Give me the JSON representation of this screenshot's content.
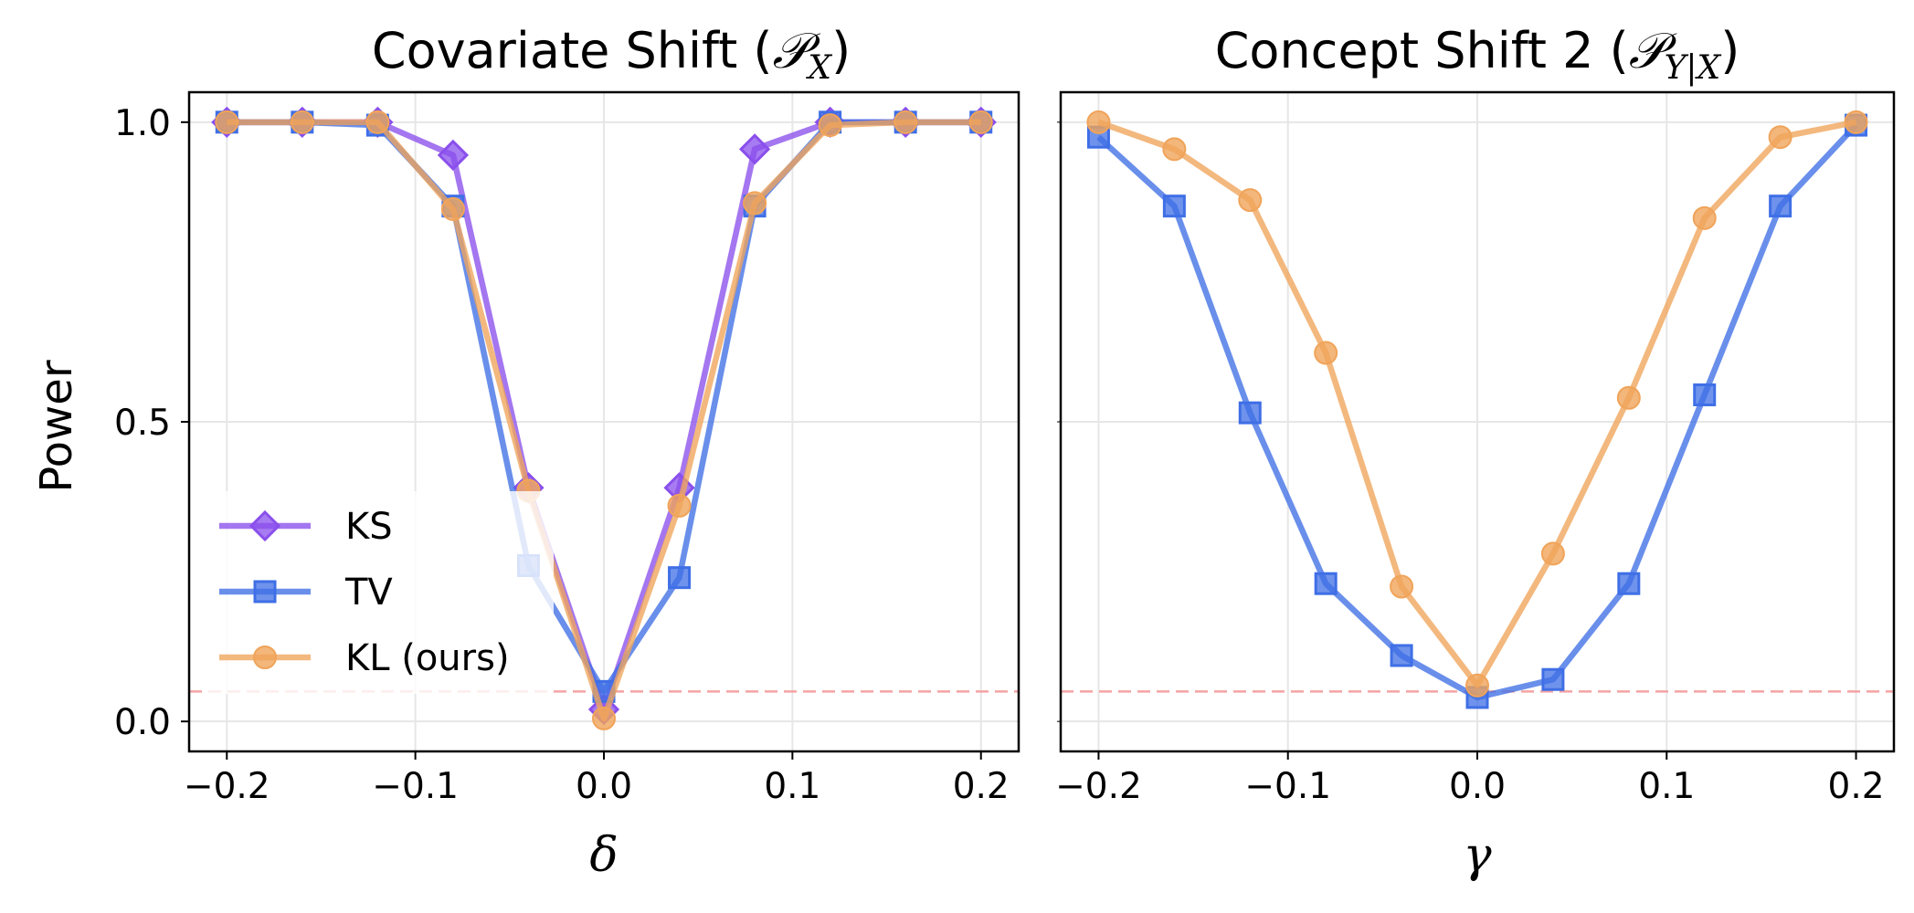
{
  "figure": {
    "y_tick_labels": [
      "0.0",
      "0.5",
      "1.0"
    ],
    "x_tick_labels": [
      "−0.2",
      "−0.1",
      "0.0",
      "0.1",
      "0.2"
    ],
    "ylabel": "Power"
  },
  "colors": {
    "KS": "#8a4fec",
    "TV": "#3f6fe6",
    "KL (ours)": "#f0a45a",
    "reference_line": "#f4a3a3",
    "grid": "#e6e6e6"
  },
  "chart_data": [
    {
      "type": "line",
      "title_text": "Covariate Shift (",
      "title_math": "𝒫",
      "title_math_sub": "X",
      "title_close": ")",
      "xlabel": "δ",
      "ylabel": "Power",
      "xlim": [
        -0.22,
        0.22
      ],
      "ylim": [
        -0.05,
        1.05
      ],
      "x": [
        -0.2,
        -0.16,
        -0.12,
        -0.08,
        -0.04,
        0.0,
        0.04,
        0.08,
        0.12,
        0.16,
        0.2
      ],
      "reference_line_y": 0.05,
      "grid": true,
      "legend_position": "lower-left",
      "series": [
        {
          "name": "KS",
          "marker": "diamond",
          "values": [
            1.0,
            1.0,
            1.0,
            0.945,
            0.39,
            0.02,
            0.39,
            0.955,
            1.0,
            1.0,
            1.0
          ]
        },
        {
          "name": "TV",
          "marker": "square",
          "values": [
            1.0,
            1.0,
            0.995,
            0.86,
            0.26,
            0.05,
            0.24,
            0.86,
            1.0,
            1.0,
            1.0
          ]
        },
        {
          "name": "KL (ours)",
          "marker": "circle",
          "values": [
            1.0,
            1.0,
            1.0,
            0.855,
            0.385,
            0.005,
            0.36,
            0.865,
            0.995,
            1.0,
            1.0
          ]
        }
      ]
    },
    {
      "type": "line",
      "title_text": "Concept Shift 2 (",
      "title_math": "𝒫",
      "title_math_sub": "Y|X",
      "title_close": ")",
      "xlabel": "γ",
      "xlim": [
        -0.22,
        0.22
      ],
      "ylim": [
        -0.05,
        1.05
      ],
      "x": [
        -0.2,
        -0.16,
        -0.12,
        -0.08,
        -0.04,
        0.0,
        0.04,
        0.08,
        0.12,
        0.16,
        0.2
      ],
      "reference_line_y": 0.05,
      "grid": true,
      "series": [
        {
          "name": "TV",
          "marker": "square",
          "values": [
            0.975,
            0.86,
            0.515,
            0.23,
            0.11,
            0.04,
            0.07,
            0.23,
            0.545,
            0.86,
            0.995
          ]
        },
        {
          "name": "KL (ours)",
          "marker": "circle",
          "values": [
            1.0,
            0.955,
            0.87,
            0.615,
            0.225,
            0.06,
            0.28,
            0.54,
            0.84,
            0.975,
            1.0
          ]
        }
      ]
    }
  ]
}
